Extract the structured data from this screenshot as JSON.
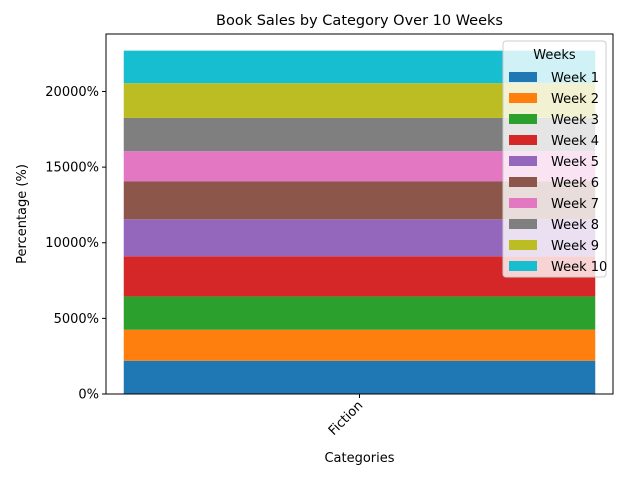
{
  "chart_data": {
    "type": "bar",
    "stacked": true,
    "title": "Book Sales by Category Over 10 Weeks",
    "xlabel": "Categories",
    "ylabel": "Percentage (%)",
    "categories": [
      "Fiction"
    ],
    "ylim": [
      0,
      23800
    ],
    "yticks": [
      0,
      5000,
      10000,
      15000,
      20000
    ],
    "ytick_labels": [
      "0%",
      "5000%",
      "10000%",
      "15000%",
      "20000%"
    ],
    "legend_title": "Weeks",
    "legend_position": "upper right",
    "grid": false,
    "series": [
      {
        "name": "Week 1",
        "values": [
          2200
        ],
        "color": "#1f77b4"
      },
      {
        "name": "Week 2",
        "values": [
          2050
        ],
        "color": "#ff7f0e"
      },
      {
        "name": "Week 3",
        "values": [
          2200
        ],
        "color": "#2ca02c"
      },
      {
        "name": "Week 4",
        "values": [
          2650
        ],
        "color": "#d62728"
      },
      {
        "name": "Week 5",
        "values": [
          2450
        ],
        "color": "#9467bd"
      },
      {
        "name": "Week 6",
        "values": [
          2500
        ],
        "color": "#8c564b"
      },
      {
        "name": "Week 7",
        "values": [
          2000
        ],
        "color": "#e377c2"
      },
      {
        "name": "Week 8",
        "values": [
          2200
        ],
        "color": "#7f7f7f"
      },
      {
        "name": "Week 9",
        "values": [
          2300
        ],
        "color": "#bcbd22"
      },
      {
        "name": "Week 10",
        "values": [
          2150
        ],
        "color": "#17becf"
      }
    ]
  }
}
